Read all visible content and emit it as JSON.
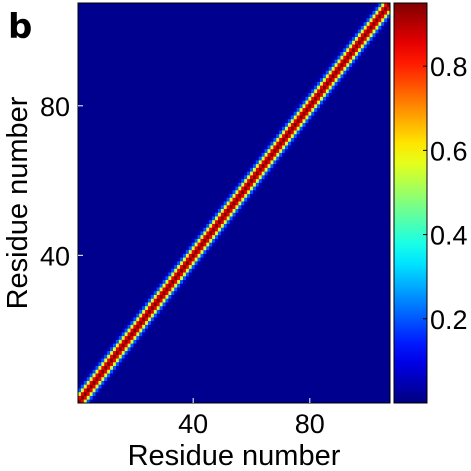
{
  "panel_label": "b",
  "chart_data": {
    "type": "heatmap",
    "title": "",
    "xlabel": "Residue number",
    "ylabel": "Residue number",
    "n": 107,
    "xlim": [
      0.5,
      107.5
    ],
    "ylim": [
      0.5,
      107.5
    ],
    "xticks": [
      40,
      80
    ],
    "yticks": [
      40,
      80
    ],
    "x_tick_labels": [
      "40",
      "80"
    ],
    "y_tick_labels": [
      "40",
      "80"
    ],
    "diagonal_profile": {
      "offsets": [
        0,
        1,
        2,
        3,
        4
      ],
      "values": [
        0.95,
        0.85,
        0.55,
        0.2,
        0.05
      ]
    },
    "background_value": 0.0,
    "colorbar": {
      "min": 0.0,
      "max": 0.95,
      "ticks": [
        0.2,
        0.4,
        0.6,
        0.8
      ],
      "tick_labels": [
        "0.2",
        "0.4",
        "0.6",
        "0.8"
      ],
      "colormap": "jet"
    },
    "colors": {
      "low": "#00008f",
      "high": "#800000"
    }
  }
}
